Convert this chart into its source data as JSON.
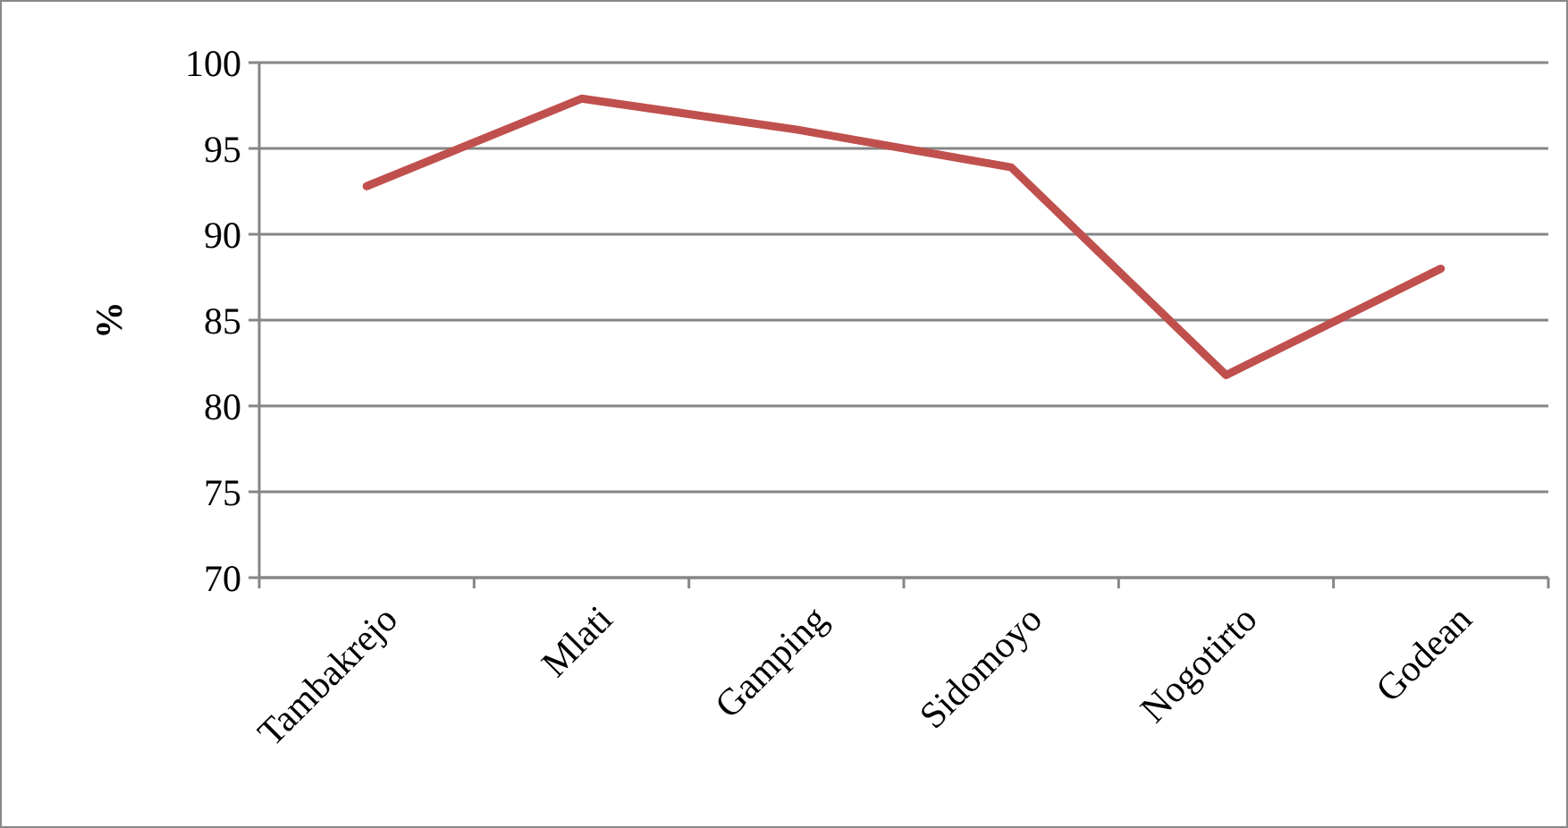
{
  "chart_data": {
    "type": "line",
    "ylabel": "%",
    "categories": [
      "Tambakrejo",
      "Mlati",
      "Gamping",
      "Sidomoyo",
      "Nogotirto",
      "Godean"
    ],
    "series": [
      {
        "color": "#c0504d",
        "values": [
          92.8,
          97.9,
          96.1,
          93.9,
          81.8,
          88.0
        ]
      }
    ],
    "ylim": [
      70,
      100
    ],
    "yticks": [
      70,
      75,
      80,
      85,
      90,
      95,
      100
    ],
    "grid": "y",
    "marker": "none",
    "line_style": "solid"
  }
}
